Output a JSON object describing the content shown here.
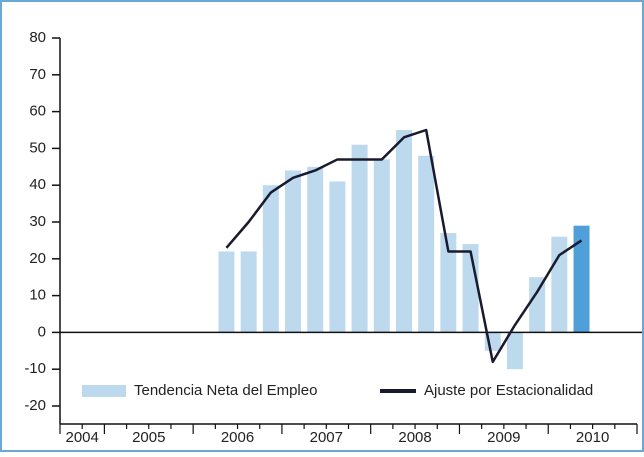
{
  "chart_data": {
    "type": "bar",
    "categories": [
      null,
      null,
      null,
      null,
      null,
      null,
      null,
      null,
      null,
      null,
      null,
      null,
      null,
      null,
      null,
      null,
      null,
      null,
      null,
      null,
      null,
      null,
      null,
      null,
      null,
      null
    ],
    "year_labels": [
      "2004",
      "2005",
      "2006",
      "2007",
      "2008",
      "2009",
      "2010"
    ],
    "series": [
      {
        "name": "Tendencia Neta del Empleo",
        "type": "bar",
        "color": "#bcd9ee",
        "colors": [
          null,
          null,
          null,
          null,
          null,
          null,
          null,
          "#bcd9ee",
          "#bcd9ee",
          "#bcd9ee",
          "#bcd9ee",
          "#bcd9ee",
          "#bcd9ee",
          "#bcd9ee",
          "#bcd9ee",
          "#bcd9ee",
          "#bcd9ee",
          "#bcd9ee",
          "#bcd9ee",
          "#bcd9ee",
          "#bcd9ee",
          "#bcd9ee",
          "#bcd9ee",
          "#4fa0d8",
          null,
          null
        ],
        "values": [
          null,
          null,
          null,
          null,
          null,
          null,
          null,
          22,
          22,
          40,
          44,
          45,
          41,
          51,
          47,
          55,
          48,
          27,
          24,
          -5,
          -10,
          15,
          26,
          29,
          null,
          null
        ]
      },
      {
        "name": "Ajuste por Estacionalidad",
        "type": "line",
        "color": "#1a1a2e",
        "values": [
          null,
          null,
          null,
          null,
          null,
          null,
          null,
          23,
          30,
          38,
          42,
          44,
          47,
          47,
          47,
          53,
          55,
          22,
          22,
          -8,
          2,
          11,
          21,
          25,
          null,
          null
        ]
      }
    ],
    "ylim": [
      -20,
      80
    ],
    "yticks": [
      -20,
      -10,
      0,
      10,
      20,
      30,
      40,
      50,
      60,
      70,
      80
    ]
  }
}
